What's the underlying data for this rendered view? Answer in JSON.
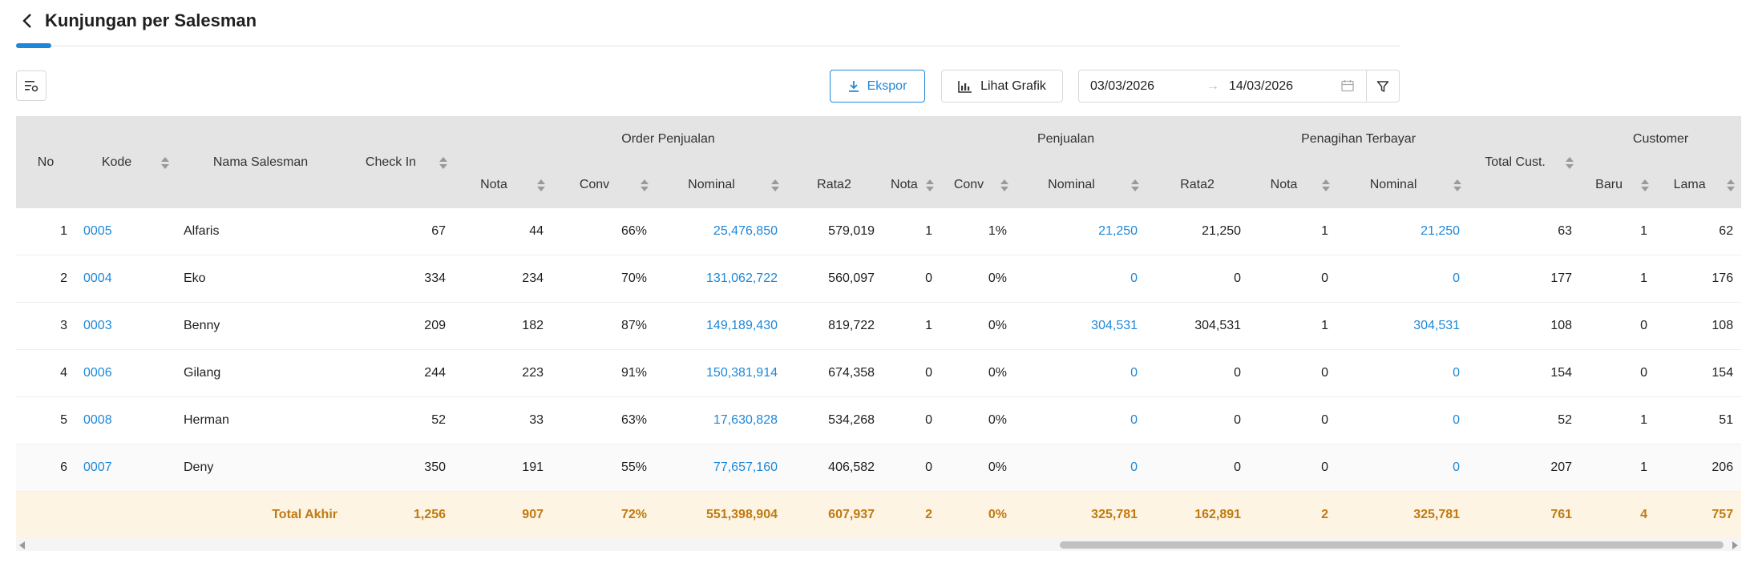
{
  "header": {
    "title": "Kunjungan per Salesman"
  },
  "toolbar": {
    "export_label": "Ekspor",
    "chart_label": "Lihat Grafik",
    "date_start": "03/03/2026",
    "date_end": "14/03/2026",
    "date_separator": "→"
  },
  "columns": {
    "no": "No",
    "kode": "Kode",
    "nama": "Nama Salesman",
    "checkin": "Check In",
    "group_order": "Order Penjualan",
    "group_penjualan": "Penjualan",
    "group_penagihan": "Penagihan Terbayar",
    "total_cust": "Total Cust.",
    "group_customer": "Customer",
    "op_nota": "Nota",
    "op_conv": "Conv",
    "op_nominal": "Nominal",
    "op_rata2": "Rata2",
    "pj_nota": "Nota",
    "pj_conv": "Conv",
    "pj_nominal": "Nominal",
    "pj_rata2": "Rata2",
    "pt_nota": "Nota",
    "pt_nominal": "Nominal",
    "cu_baru": "Baru",
    "cu_lama": "Lama"
  },
  "rows": [
    {
      "no": "1",
      "kode": "0005",
      "nama": "Alfaris",
      "checkin": "67",
      "op_nota": "44",
      "op_conv": "66%",
      "op_nominal": "25,476,850",
      "op_rata2": "579,019",
      "pj_nota": "1",
      "pj_conv": "1%",
      "pj_nominal": "21,250",
      "pj_rata2": "21,250",
      "pt_nota": "1",
      "pt_nominal": "21,250",
      "total_cust": "63",
      "baru": "1",
      "lama": "62"
    },
    {
      "no": "2",
      "kode": "0004",
      "nama": "Eko",
      "checkin": "334",
      "op_nota": "234",
      "op_conv": "70%",
      "op_nominal": "131,062,722",
      "op_rata2": "560,097",
      "pj_nota": "0",
      "pj_conv": "0%",
      "pj_nominal": "0",
      "pj_rata2": "0",
      "pt_nota": "0",
      "pt_nominal": "0",
      "total_cust": "177",
      "baru": "1",
      "lama": "176"
    },
    {
      "no": "3",
      "kode": "0003",
      "nama": "Benny",
      "checkin": "209",
      "op_nota": "182",
      "op_conv": "87%",
      "op_nominal": "149,189,430",
      "op_rata2": "819,722",
      "pj_nota": "1",
      "pj_conv": "0%",
      "pj_nominal": "304,531",
      "pj_rata2": "304,531",
      "pt_nota": "1",
      "pt_nominal": "304,531",
      "total_cust": "108",
      "baru": "0",
      "lama": "108"
    },
    {
      "no": "4",
      "kode": "0006",
      "nama": "Gilang",
      "checkin": "244",
      "op_nota": "223",
      "op_conv": "91%",
      "op_nominal": "150,381,914",
      "op_rata2": "674,358",
      "pj_nota": "0",
      "pj_conv": "0%",
      "pj_nominal": "0",
      "pj_rata2": "0",
      "pt_nota": "0",
      "pt_nominal": "0",
      "total_cust": "154",
      "baru": "0",
      "lama": "154"
    },
    {
      "no": "5",
      "kode": "0008",
      "nama": "Herman",
      "checkin": "52",
      "op_nota": "33",
      "op_conv": "63%",
      "op_nominal": "17,630,828",
      "op_rata2": "534,268",
      "pj_nota": "0",
      "pj_conv": "0%",
      "pj_nominal": "0",
      "pj_rata2": "0",
      "pt_nota": "0",
      "pt_nominal": "0",
      "total_cust": "52",
      "baru": "1",
      "lama": "51"
    },
    {
      "no": "6",
      "kode": "0007",
      "nama": "Deny",
      "checkin": "350",
      "op_nota": "191",
      "op_conv": "55%",
      "op_nominal": "77,657,160",
      "op_rata2": "406,582",
      "pj_nota": "0",
      "pj_conv": "0%",
      "pj_nominal": "0",
      "pj_rata2": "0",
      "pt_nota": "0",
      "pt_nominal": "0",
      "total_cust": "207",
      "baru": "1",
      "lama": "206"
    }
  ],
  "total": {
    "label": "Total Akhir",
    "checkin": "1,256",
    "op_nota": "907",
    "op_conv": "72%",
    "op_nominal": "551,398,904",
    "op_rata2": "607,937",
    "pj_nota": "2",
    "pj_conv": "0%",
    "pj_nominal": "325,781",
    "pj_rata2": "162,891",
    "pt_nota": "2",
    "pt_nominal": "325,781",
    "total_cust": "761",
    "baru": "4",
    "lama": "757"
  },
  "colors": {
    "accent": "#1e88d8",
    "total_text": "#c07a11",
    "total_bg": "#fdf4e3",
    "header_bg": "#e4e4e4"
  },
  "icons": {
    "back": "chevron-left-icon",
    "columns": "column-settings-icon",
    "export": "download-icon",
    "chart": "bar-chart-icon",
    "calendar": "calendar-icon",
    "filter": "filter-icon"
  }
}
